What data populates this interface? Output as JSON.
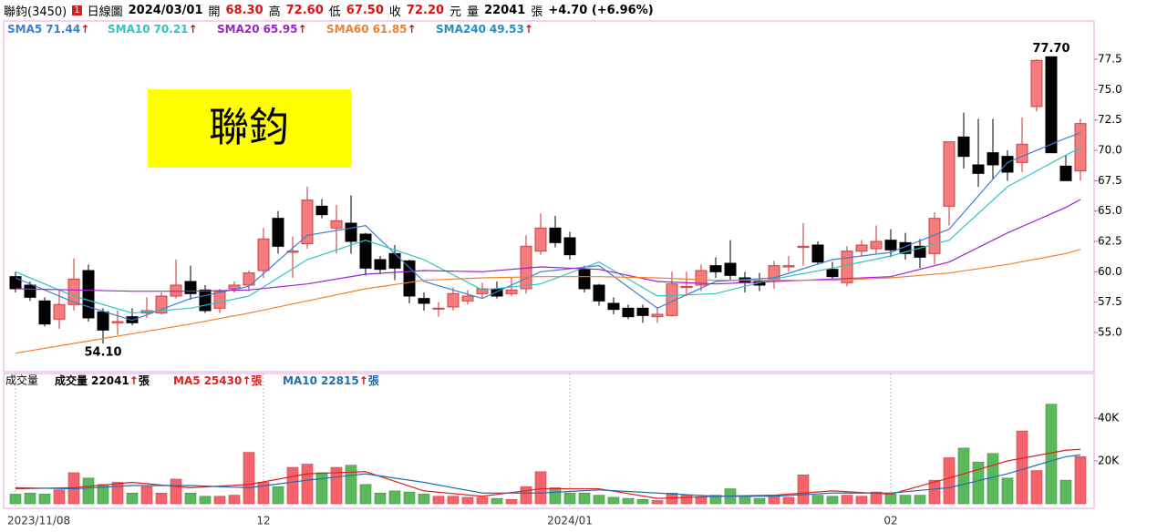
{
  "header": {
    "name": "聯鈞(3450)",
    "badge": "1",
    "view": "日線圖",
    "date": "2024/03/01",
    "quotes": [
      {
        "label": "開",
        "value": "68.30"
      },
      {
        "label": "高",
        "value": "72.60"
      },
      {
        "label": "低",
        "value": "67.50"
      },
      {
        "label": "收",
        "value": "72.20"
      }
    ],
    "unit": "元",
    "volume_label": "量",
    "volume": "22041",
    "volume_unit": "張",
    "change": "+4.70 (+6.96%)"
  },
  "chart_data": [
    {
      "type": "candlestick",
      "watermark": "聯鈞",
      "up_color": "#f47c7c",
      "down_color": "#000000",
      "ylim": [
        52,
        80.5
      ],
      "yticks": [
        {
          "value": 55,
          "label": "55.0"
        },
        {
          "value": 57.5,
          "label": "57.5"
        },
        {
          "value": 60,
          "label": "60.0"
        },
        {
          "value": 62.5,
          "label": "62.5"
        },
        {
          "value": 65,
          "label": "65.0"
        },
        {
          "value": 67.5,
          "label": "67.5"
        },
        {
          "value": 70,
          "label": "70.0"
        },
        {
          "value": 72.5,
          "label": "72.5"
        },
        {
          "value": 75,
          "label": "75.0"
        },
        {
          "value": 77.5,
          "label": "77.5"
        }
      ],
      "ohlc": [
        [
          59.6,
          60.0,
          58.3,
          58.6
        ],
        [
          58.9,
          59.2,
          57.6,
          57.9
        ],
        [
          57.6,
          57.9,
          55.5,
          55.7
        ],
        [
          56.1,
          58.5,
          55.3,
          57.3
        ],
        [
          57.3,
          61.1,
          56.8,
          59.4
        ],
        [
          60.1,
          60.6,
          55.9,
          56.2
        ],
        [
          56.7,
          57.0,
          54.1,
          55.2
        ],
        [
          55.8,
          56.8,
          54.8,
          55.9
        ],
        [
          56.3,
          57.0,
          55.6,
          55.8
        ],
        [
          56.6,
          57.9,
          56.2,
          56.8
        ],
        [
          56.6,
          58.3,
          56.5,
          58.0
        ],
        [
          58.0,
          61.0,
          57.8,
          58.9
        ],
        [
          59.2,
          60.5,
          57.7,
          58.2
        ],
        [
          58.5,
          58.9,
          56.6,
          56.8
        ],
        [
          57.0,
          58.6,
          56.6,
          58.4
        ],
        [
          58.6,
          59.2,
          58.3,
          58.9
        ],
        [
          58.9,
          60.1,
          58.4,
          59.9
        ],
        [
          60.1,
          63.6,
          59.5,
          62.7
        ],
        [
          64.4,
          65.0,
          61.5,
          62.1
        ],
        [
          61.6,
          62.9,
          59.5,
          61.7
        ],
        [
          62.3,
          67.0,
          61.9,
          65.9
        ],
        [
          65.4,
          66.0,
          64.4,
          64.7
        ],
        [
          63.6,
          65.5,
          61.5,
          64.2
        ],
        [
          64.0,
          66.3,
          61.5,
          62.5
        ],
        [
          63.1,
          63.2,
          59.7,
          60.3
        ],
        [
          61.0,
          61.3,
          59.8,
          60.2
        ],
        [
          61.5,
          62.2,
          59.3,
          60.3
        ],
        [
          60.9,
          61.0,
          57.4,
          58.0
        ],
        [
          57.8,
          58.3,
          56.8,
          57.4
        ],
        [
          57.0,
          57.5,
          56.3,
          57.0
        ],
        [
          57.1,
          58.7,
          56.8,
          58.2
        ],
        [
          57.6,
          58.5,
          57.3,
          58.0
        ],
        [
          58.2,
          59.1,
          57.8,
          58.6
        ],
        [
          58.6,
          59.2,
          57.8,
          58.0
        ],
        [
          58.2,
          59.5,
          58.0,
          58.5
        ],
        [
          58.6,
          63.0,
          58.2,
          62.1
        ],
        [
          61.7,
          64.8,
          61.4,
          63.6
        ],
        [
          63.6,
          64.6,
          62.0,
          62.4
        ],
        [
          62.8,
          63.3,
          61.0,
          61.4
        ],
        [
          60.2,
          60.5,
          58.3,
          58.6
        ],
        [
          58.9,
          59.0,
          57.2,
          57.6
        ],
        [
          57.4,
          57.9,
          56.5,
          56.9
        ],
        [
          57.0,
          57.3,
          56.1,
          56.3
        ],
        [
          57.0,
          57.3,
          55.8,
          56.4
        ],
        [
          56.3,
          57.1,
          55.8,
          56.5
        ],
        [
          56.4,
          60.0,
          56.3,
          59.0
        ],
        [
          58.7,
          60.0,
          58.0,
          58.8
        ],
        [
          58.9,
          60.6,
          58.4,
          60.1
        ],
        [
          60.5,
          61.2,
          59.5,
          60.0
        ],
        [
          60.7,
          62.6,
          59.3,
          59.7
        ],
        [
          59.5,
          60.0,
          58.3,
          59.1
        ],
        [
          59.2,
          59.9,
          58.4,
          58.9
        ],
        [
          59.3,
          60.9,
          58.6,
          60.5
        ],
        [
          60.4,
          61.3,
          60.0,
          60.5
        ],
        [
          62.0,
          64.0,
          60.5,
          62.1
        ],
        [
          62.2,
          62.5,
          60.6,
          60.8
        ],
        [
          60.2,
          60.8,
          59.4,
          59.6
        ],
        [
          59.1,
          62.1,
          58.8,
          61.7
        ],
        [
          61.7,
          62.6,
          61.3,
          62.2
        ],
        [
          61.9,
          63.8,
          61.5,
          62.5
        ],
        [
          62.6,
          63.5,
          61.2,
          61.8
        ],
        [
          62.4,
          63.2,
          61.0,
          61.5
        ],
        [
          62.1,
          62.7,
          60.3,
          61.2
        ],
        [
          61.5,
          64.9,
          60.6,
          64.4
        ],
        [
          65.4,
          70.7,
          63.8,
          70.7
        ],
        [
          71.1,
          73.1,
          68.5,
          69.5
        ],
        [
          68.8,
          72.6,
          67.0,
          68.1
        ],
        [
          69.8,
          72.6,
          67.6,
          68.8
        ],
        [
          69.5,
          70.0,
          67.5,
          68.2
        ],
        [
          69.0,
          72.7,
          68.2,
          70.5
        ],
        [
          73.6,
          77.5,
          73.2,
          77.4
        ],
        [
          77.7,
          77.7,
          69.8,
          69.8
        ],
        [
          68.7,
          69.6,
          67.5,
          67.5
        ],
        [
          68.3,
          72.6,
          67.5,
          72.2
        ]
      ],
      "annotations": [
        {
          "label": "77.70",
          "index": 71,
          "value": 77.7
        },
        {
          "label": "54.10",
          "index": 6,
          "value": 54.1
        }
      ],
      "lines": [
        {
          "name": "SMA5",
          "last": 71.44,
          "arrow": "↑",
          "color": "#3a7fd5",
          "x": [
            0,
            4,
            8,
            12,
            16,
            20,
            24,
            28,
            32,
            36,
            40,
            44,
            48,
            52,
            56,
            60,
            64,
            68,
            72,
            73
          ],
          "values": [
            59.5,
            57.5,
            56,
            57.8,
            58.8,
            63,
            63.8,
            59.2,
            57.8,
            60,
            60.5,
            57,
            59.2,
            59.5,
            61,
            61.6,
            63.5,
            69,
            71,
            71.44
          ]
        },
        {
          "name": "SMA10",
          "last": 70.21,
          "arrow": "↑",
          "color": "#2ec4c4",
          "x": [
            0,
            4,
            8,
            12,
            16,
            20,
            24,
            28,
            32,
            36,
            40,
            44,
            48,
            52,
            56,
            60,
            64,
            68,
            72,
            73
          ],
          "values": [
            60,
            58,
            56.6,
            57,
            58,
            61,
            62.6,
            61,
            58.5,
            59,
            60.8,
            58,
            58.2,
            59.4,
            60.3,
            61.3,
            62.6,
            67,
            69.6,
            70.21
          ]
        },
        {
          "name": "SMA20",
          "last": 65.95,
          "arrow": "↑",
          "color": "#a020d0",
          "x": [
            0,
            4,
            8,
            12,
            16,
            20,
            24,
            28,
            32,
            36,
            40,
            44,
            48,
            52,
            56,
            60,
            64,
            68,
            72,
            73
          ],
          "values": [
            58.6,
            58.5,
            58.4,
            58.4,
            58.5,
            59,
            59.8,
            60.1,
            60,
            60.4,
            60.2,
            59.2,
            59,
            59.2,
            59.4,
            59.6,
            60.8,
            63.2,
            65.3,
            65.95
          ]
        },
        {
          "name": "SMA60",
          "last": 61.85,
          "arrow": "↑",
          "color": "#f08030",
          "x": [
            0,
            4,
            8,
            12,
            16,
            20,
            24,
            28,
            32,
            36,
            40,
            44,
            48,
            52,
            56,
            60,
            64,
            68,
            72,
            73
          ],
          "values": [
            53.3,
            54.1,
            54.9,
            55.7,
            56.6,
            57.6,
            58.6,
            59.3,
            59.5,
            59.6,
            59.6,
            59.5,
            59.3,
            59.3,
            59.3,
            59.5,
            59.9,
            60.6,
            61.5,
            61.85
          ]
        },
        {
          "name": "SMA240",
          "last": 49.53,
          "arrow": "↑",
          "color": "#1f8fc8"
        }
      ]
    },
    {
      "type": "bar",
      "title": "成交量",
      "up_color": "#f4636b",
      "down_color": "#5cb85c",
      "ylim": [
        0,
        60000
      ],
      "yticks": [
        {
          "value": 20000,
          "label": "20K"
        },
        {
          "value": 40000,
          "label": "40K"
        }
      ],
      "values": [
        4500,
        5000,
        4500,
        6500,
        14500,
        12000,
        9000,
        10000,
        5000,
        8000,
        5000,
        11500,
        5000,
        3500,
        3500,
        4000,
        24000,
        10000,
        8000,
        17000,
        18500,
        14500,
        17000,
        18000,
        9000,
        5000,
        6000,
        5500,
        4500,
        3500,
        3500,
        3000,
        3000,
        2500,
        2000,
        8000,
        15000,
        7500,
        5000,
        5000,
        4000,
        3000,
        2500,
        2000,
        1500,
        5000,
        4000,
        3000,
        4000,
        7000,
        3500,
        2500,
        4000,
        3000,
        13500,
        4000,
        3500,
        4000,
        3500,
        5500,
        4500,
        4000,
        4000,
        11000,
        21500,
        26000,
        19500,
        23500,
        12000,
        34000,
        15500,
        46500,
        11000,
        22041
      ],
      "xticks": [
        {
          "value": 0,
          "label": "2023/11/08"
        },
        {
          "value": 17,
          "label": "12"
        },
        {
          "value": 38,
          "label": "2024/01"
        },
        {
          "value": 60,
          "label": "02"
        }
      ],
      "lines": [
        {
          "name": "成交量",
          "last": 22041,
          "arrow": "↑",
          "unit": "張",
          "color": "#000000"
        },
        {
          "name": "MA5",
          "last": 25430,
          "arrow": "↑",
          "unit": "張",
          "color": "#e02020",
          "x": [
            0,
            4,
            8,
            12,
            16,
            20,
            24,
            28,
            32,
            36,
            40,
            44,
            48,
            52,
            56,
            60,
            64,
            68,
            72,
            73
          ],
          "values": [
            7000,
            7500,
            10000,
            7500,
            9000,
            14000,
            15000,
            6000,
            3500,
            7000,
            7000,
            2500,
            3500,
            4000,
            6000,
            4500,
            12000,
            20000,
            25000,
            25430
          ]
        },
        {
          "name": "MA10",
          "last": 22815,
          "arrow": "↑",
          "unit": "張",
          "color": "#1f6fb0",
          "x": [
            0,
            4,
            8,
            12,
            16,
            20,
            24,
            28,
            32,
            36,
            40,
            44,
            48,
            52,
            56,
            60,
            64,
            68,
            72,
            73
          ],
          "values": [
            7500,
            7000,
            8500,
            8500,
            7500,
            11000,
            14000,
            10000,
            5000,
            5000,
            6500,
            5000,
            3500,
            3500,
            5000,
            5000,
            7500,
            14000,
            22000,
            22815
          ]
        }
      ]
    }
  ]
}
